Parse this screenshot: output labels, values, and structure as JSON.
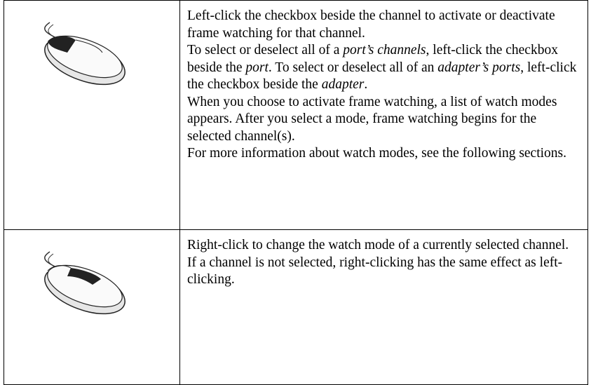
{
  "table": {
    "rows": [
      {
        "paragraphs": [
          [
            "Left-click the checkbox beside the channel to activate or deactivate frame watching for that channel."
          ],
          [
            "To select or deselect all of a ",
            {
              "text": "port’s channels",
              "italic": true
            },
            ", left-click the checkbox beside the ",
            {
              "text": "port",
              "italic": true
            },
            ". To select or deselect all of an ",
            {
              "text": "adapter’s ports",
              "italic": true
            },
            ", left-click the checkbox beside the ",
            {
              "text": "adapter",
              "italic": true
            },
            "."
          ],
          [
            "When you choose to activate frame watching, a list of watch modes appears. After you select a mode, frame watching begins for the selected channel(s)."
          ],
          [
            "For more information about watch modes, see the following sections."
          ]
        ]
      },
      {
        "paragraphs": [
          [
            "Right-click to change the watch mode of a currently selected channel."
          ],
          [
            "If a channel is not selected, right-clicking has the same effect as left-clicking."
          ]
        ]
      }
    ]
  }
}
